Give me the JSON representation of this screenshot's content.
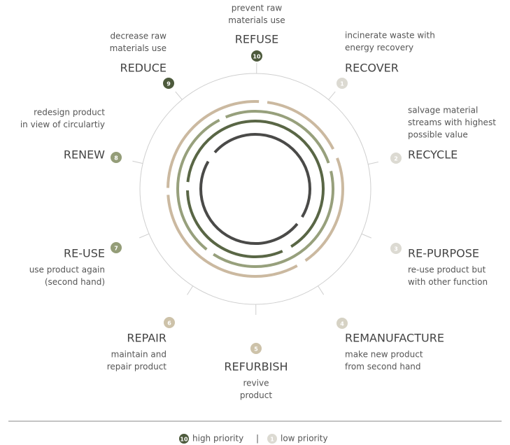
{
  "nodes": [
    {
      "number": 10,
      "title": "REFUSE",
      "description": [
        "prevent raw",
        "materials use"
      ]
    },
    {
      "number": 1,
      "title": "RECOVER",
      "description": [
        "incinerate waste with",
        "energy recovery"
      ]
    },
    {
      "number": 2,
      "title": "RECYCLE",
      "description": [
        "salvage material",
        "streams with highest",
        "possible value"
      ]
    },
    {
      "number": 3,
      "title": "RE-PURPOSE",
      "description": [
        "re-use product but",
        "with other function"
      ]
    },
    {
      "number": 4,
      "title": "REMANUFACTURE",
      "description": [
        "make new product",
        "from second hand"
      ]
    },
    {
      "number": 5,
      "title": "REFURBISH",
      "description": [
        "revive",
        "product"
      ]
    },
    {
      "number": 6,
      "title": "REPAIR",
      "description": [
        "maintain and",
        "repair product"
      ]
    },
    {
      "number": 7,
      "title": "RE-USE",
      "description": [
        "use product again",
        "(second hand)"
      ]
    },
    {
      "number": 8,
      "title": "RENEW",
      "description": [
        "redesign product",
        "in view of circulartiy"
      ]
    },
    {
      "number": 9,
      "title": "REDUCE",
      "description": [
        "decrease raw",
        "materials use"
      ]
    }
  ],
  "legend": {
    "high": {
      "number": 10,
      "label": "high priority"
    },
    "separator": "|",
    "low": {
      "number": 1,
      "label": "low priority"
    }
  }
}
